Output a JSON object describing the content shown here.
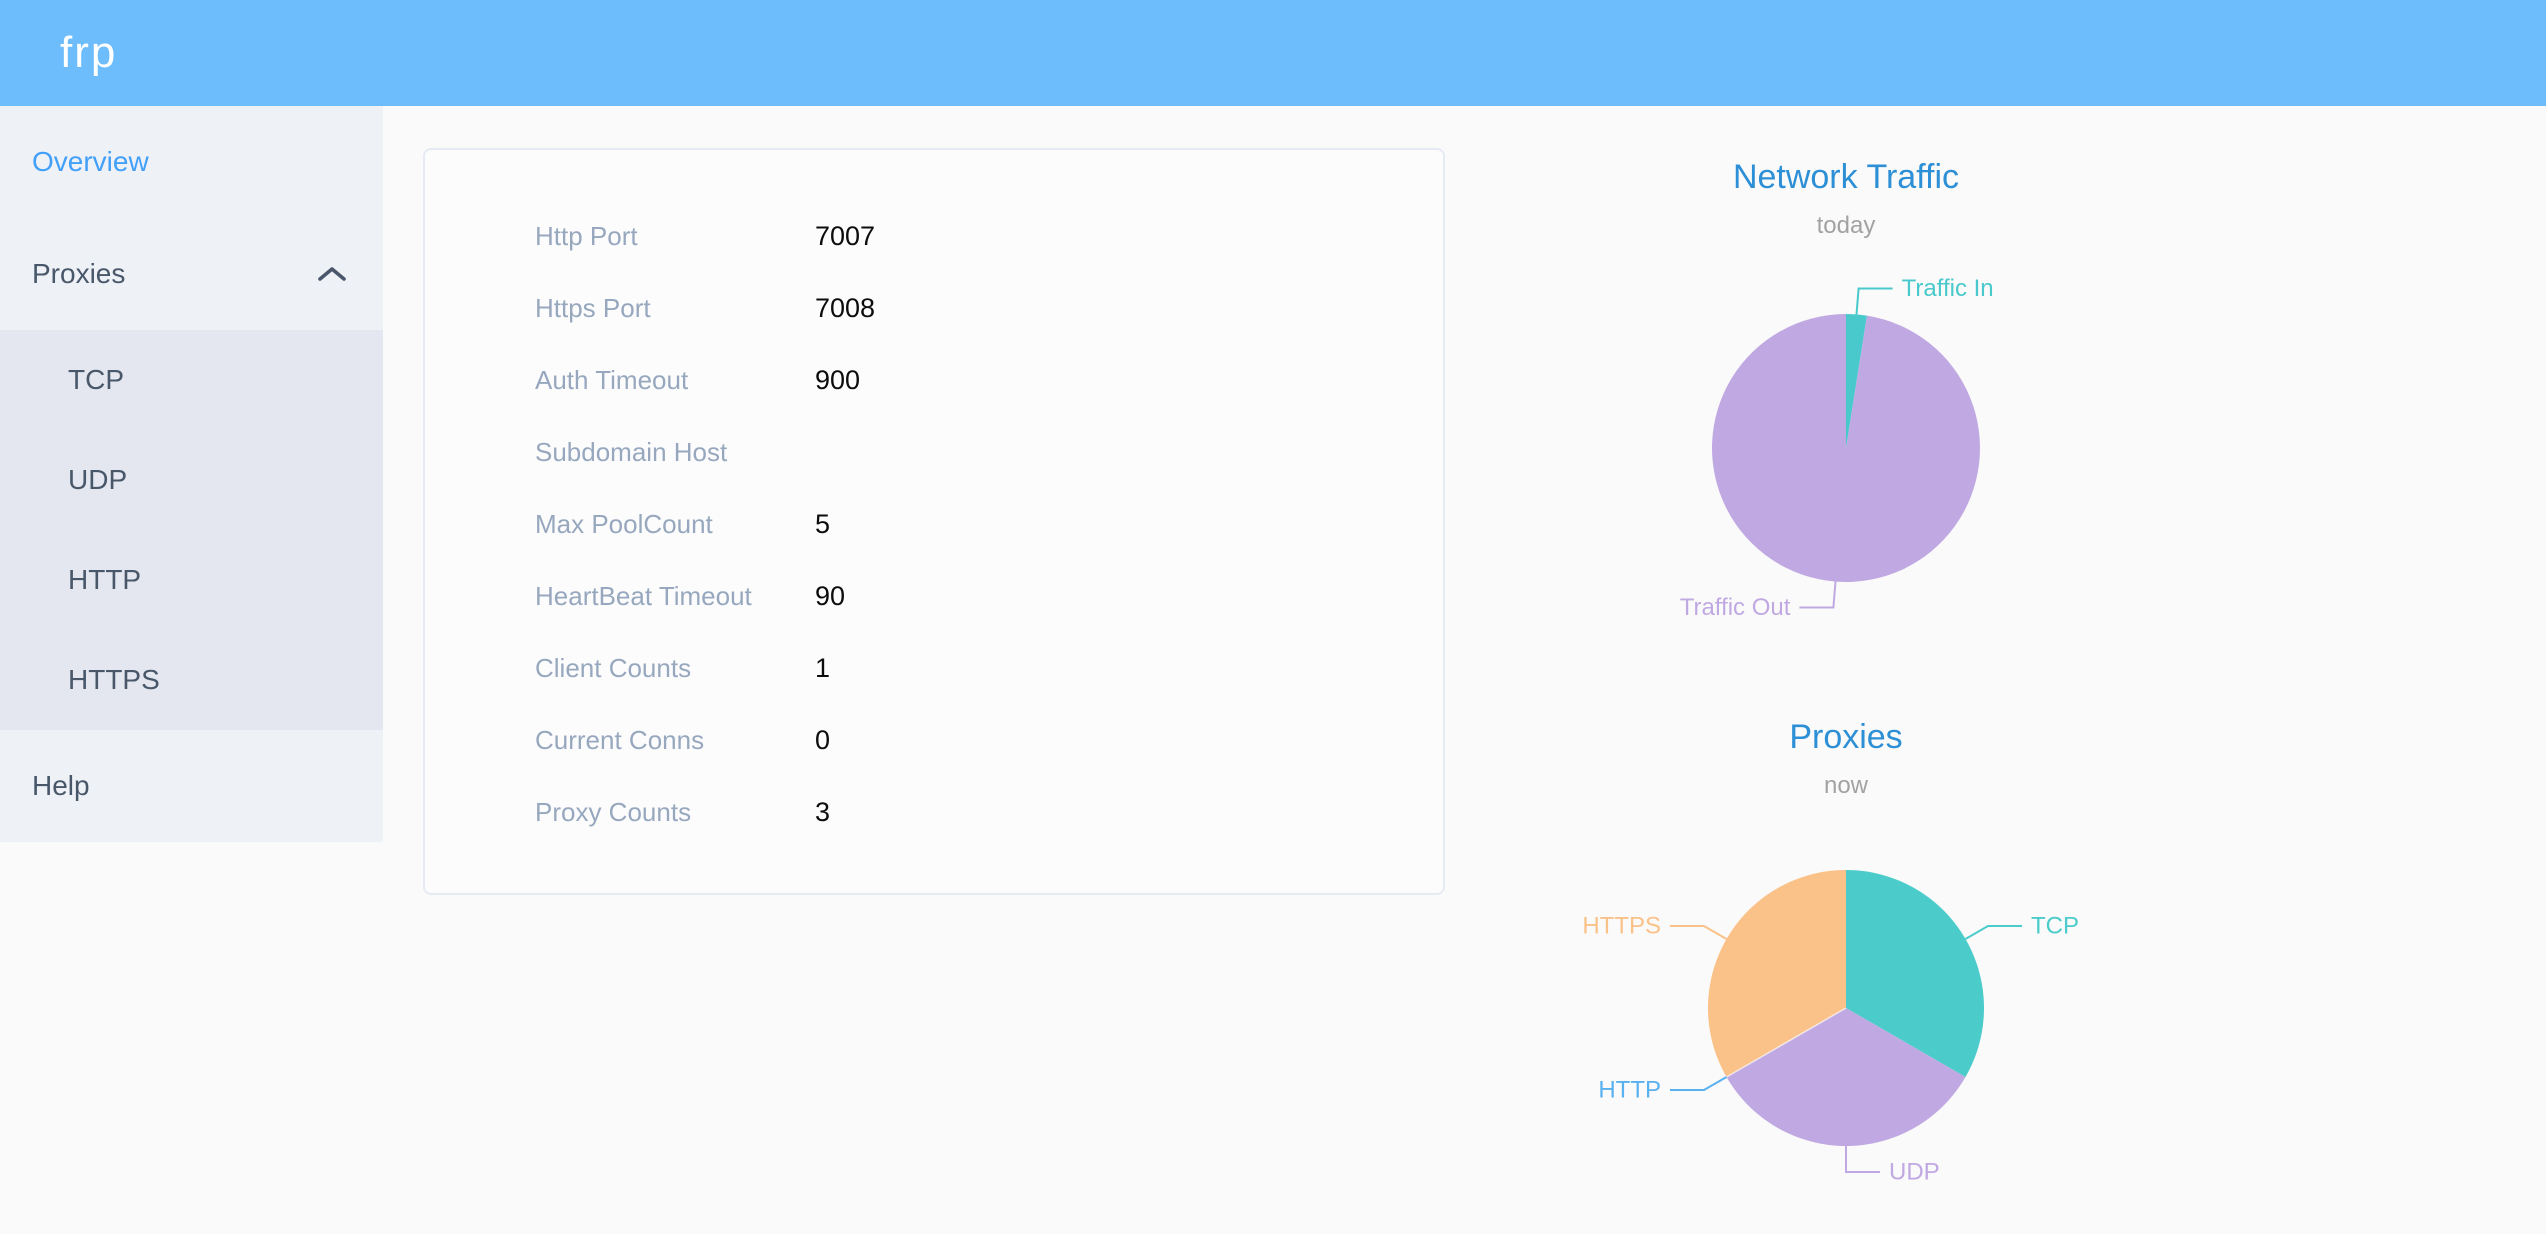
{
  "header": {
    "logo_text": "frp"
  },
  "sidebar": {
    "overview_label": "Overview",
    "proxies_label": "Proxies",
    "proxies_expanded": true,
    "proxies_children": [
      "TCP",
      "UDP",
      "HTTP",
      "HTTPS"
    ],
    "help_label": "Help",
    "active_item": "Overview"
  },
  "server_info": {
    "rows": [
      {
        "label": "Http Port",
        "value": "7007"
      },
      {
        "label": "Https Port",
        "value": "7008"
      },
      {
        "label": "Auth Timeout",
        "value": "900"
      },
      {
        "label": "Subdomain Host",
        "value": ""
      },
      {
        "label": "Max PoolCount",
        "value": "5"
      },
      {
        "label": "HeartBeat Timeout",
        "value": "90"
      },
      {
        "label": "Client Counts",
        "value": "1"
      },
      {
        "label": "Current Conns",
        "value": "0"
      },
      {
        "label": "Proxy Counts",
        "value": "3"
      }
    ]
  },
  "chart_data": [
    {
      "type": "pie",
      "title": "Network Traffic",
      "subtitle": "today",
      "legend_position": "none",
      "value_unit": "percent (estimated from slice angles; absolute values not shown on screen)",
      "slices": [
        {
          "label": "Traffic In",
          "value": 2.5,
          "color": "#49c9cb"
        },
        {
          "label": "Traffic Out",
          "value": 97.5,
          "color": "#c0a9e2"
        }
      ]
    },
    {
      "type": "pie",
      "title": "Proxies",
      "subtitle": "now",
      "legend_position": "none",
      "value_unit": "count",
      "slices": [
        {
          "label": "TCP",
          "value": 1,
          "color": "#4bccca"
        },
        {
          "label": "UDP",
          "value": 1,
          "color": "#c0a9e2"
        },
        {
          "label": "HTTP",
          "value": 0,
          "color": "#5ab1ef"
        },
        {
          "label": "HTTPS",
          "value": 1,
          "color": "#fac289"
        }
      ]
    }
  ],
  "colors": {
    "header-bg": "#6dbcfc",
    "logo-text": "#ffffff",
    "sidebar-bg": "#eef1f6",
    "submenu-bg": "#e4e7ef",
    "menu-text": "#48576a",
    "active-menu-text": "#42a0f8",
    "page-bg": "#fafafa",
    "card-bg": "#fcfcfd",
    "card-border": "#e6eaf3",
    "label-text": "#97a8be",
    "value-text": "#0c0c0c",
    "chart-title": "#2d8fd5",
    "chart-subtitle": "#a2a2a2"
  }
}
